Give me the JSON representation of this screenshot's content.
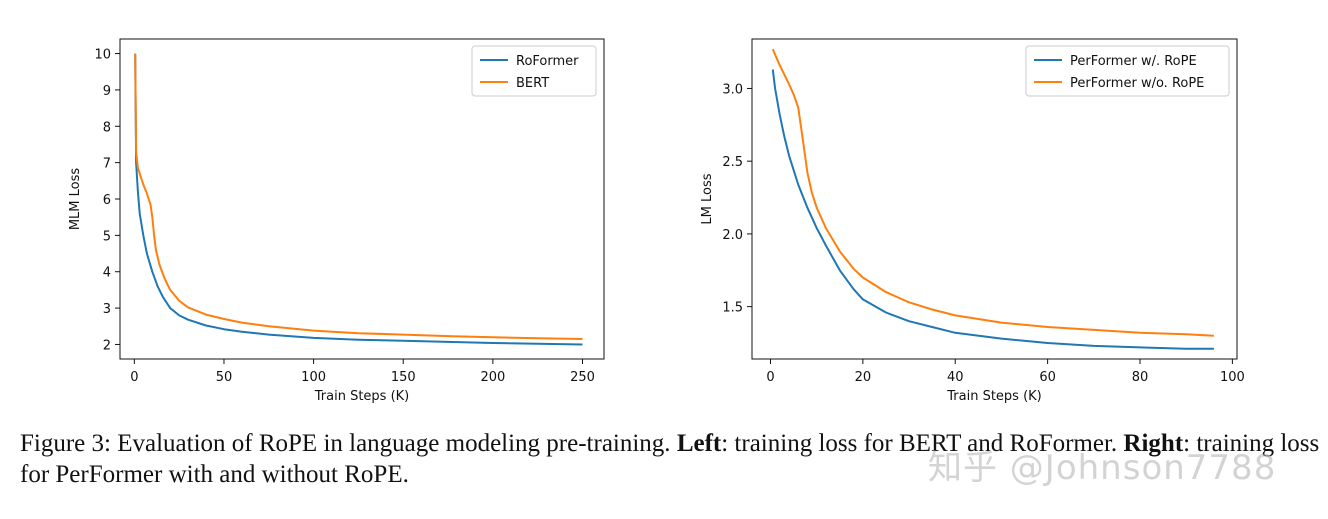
{
  "chart_data": [
    {
      "type": "line",
      "xlabel": "Train Steps (K)",
      "ylabel": "MLM Loss",
      "xlim": [
        -8,
        262
      ],
      "ylim": [
        1.6,
        10.4
      ],
      "xticks": [
        0,
        50,
        100,
        150,
        200,
        250
      ],
      "yticks": [
        2,
        3,
        4,
        5,
        6,
        7,
        8,
        9,
        10
      ],
      "legend_position": "top-right",
      "series": [
        {
          "name": "RoFormer",
          "color": "#1f77b4",
          "x": [
            0.5,
            1,
            2,
            3,
            5,
            7,
            10,
            13,
            16,
            20,
            25,
            30,
            40,
            50,
            60,
            75,
            100,
            125,
            150,
            175,
            200,
            225,
            250
          ],
          "y": [
            10.0,
            7.0,
            6.2,
            5.6,
            5.0,
            4.5,
            4.0,
            3.6,
            3.3,
            3.0,
            2.8,
            2.68,
            2.52,
            2.42,
            2.35,
            2.27,
            2.18,
            2.13,
            2.1,
            2.07,
            2.04,
            2.02,
            2.0
          ]
        },
        {
          "name": "BERT",
          "color": "#ff7f0e",
          "x": [
            0.5,
            1,
            2,
            3,
            5,
            7,
            9,
            10,
            11,
            12,
            14,
            17,
            20,
            25,
            30,
            40,
            50,
            60,
            75,
            100,
            125,
            150,
            175,
            200,
            225,
            250
          ],
          "y": [
            10.0,
            7.3,
            6.85,
            6.7,
            6.4,
            6.15,
            5.85,
            5.5,
            5.0,
            4.6,
            4.2,
            3.8,
            3.5,
            3.2,
            3.02,
            2.82,
            2.7,
            2.6,
            2.5,
            2.38,
            2.31,
            2.27,
            2.23,
            2.2,
            2.17,
            2.15
          ]
        }
      ]
    },
    {
      "type": "line",
      "xlabel": "Train Steps (K)",
      "ylabel": "LM Loss",
      "xlim": [
        -4,
        101
      ],
      "ylim": [
        1.14,
        3.34
      ],
      "xticks": [
        0,
        20,
        40,
        60,
        80,
        100
      ],
      "yticks": [
        1.5,
        2.0,
        2.5,
        3.0
      ],
      "legend_position": "top-right",
      "series": [
        {
          "name": "PerFormer w/. RoPE",
          "color": "#1f77b4",
          "x": [
            0.5,
            1,
            2,
            3,
            4,
            6,
            8,
            10,
            12,
            15,
            18,
            20,
            25,
            30,
            35,
            40,
            50,
            60,
            70,
            80,
            90,
            96
          ],
          "y": [
            3.13,
            3.0,
            2.82,
            2.67,
            2.54,
            2.34,
            2.18,
            2.04,
            1.92,
            1.75,
            1.62,
            1.55,
            1.46,
            1.4,
            1.36,
            1.32,
            1.28,
            1.25,
            1.23,
            1.22,
            1.21,
            1.21
          ]
        },
        {
          "name": "PerFormer w/o. RoPE",
          "color": "#ff7f0e",
          "x": [
            0.5,
            2,
            4,
            5,
            6,
            7,
            8,
            9,
            10,
            12,
            15,
            18,
            20,
            25,
            30,
            35,
            40,
            50,
            60,
            70,
            80,
            90,
            96
          ],
          "y": [
            3.27,
            3.16,
            3.03,
            2.96,
            2.87,
            2.65,
            2.42,
            2.28,
            2.18,
            2.04,
            1.88,
            1.76,
            1.7,
            1.6,
            1.53,
            1.48,
            1.44,
            1.39,
            1.36,
            1.34,
            1.32,
            1.31,
            1.3
          ]
        }
      ]
    }
  ],
  "caption": {
    "prefix": "Figure 3: Evaluation of RoPE in language modeling pre-training. ",
    "left_label": "Left",
    "middle": ": training loss for BERT and RoFormer. ",
    "right_label": "Right",
    "suffix": ": training loss for PerFormer with and without RoPE."
  },
  "watermark": "知乎 @Johnson7788"
}
